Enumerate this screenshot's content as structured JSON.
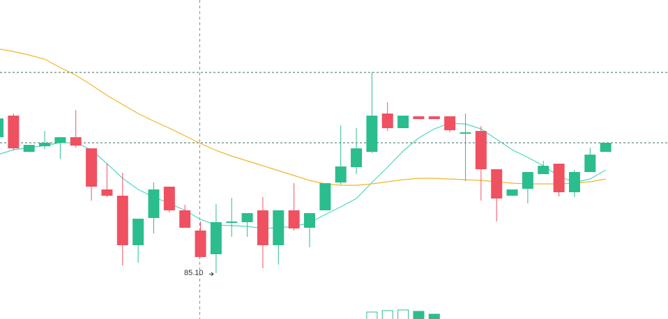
{
  "chart_data": {
    "type": "candlestick",
    "up_color": "#2bbd8e",
    "down_color": "#ef5161",
    "ylim": [
      84.44,
      89.02
    ],
    "open": [
      87.05,
      87.36,
      86.84,
      86.92,
      86.97,
      87.05,
      86.89,
      86.3,
      86.21,
      85.5,
      85.89,
      86.34,
      86.0,
      85.71,
      85.37,
      85.82,
      85.83,
      86.0,
      85.5,
      86.0,
      85.75,
      86.0,
      86.4,
      86.62,
      86.84,
      87.39,
      87.18,
      87.35,
      87.35,
      87.35,
      87.1,
      87.14,
      86.59,
      86.21,
      86.31,
      86.52,
      86.67,
      86.26,
      86.55,
      86.84
    ],
    "high": [
      87.32,
      87.39,
      86.94,
      87.14,
      87.05,
      87.44,
      86.89,
      86.67,
      86.54,
      85.88,
      86.4,
      86.34,
      86.08,
      85.84,
      86.09,
      86.18,
      85.96,
      86.19,
      86.0,
      86.39,
      85.96,
      86.39,
      87.22,
      87.18,
      87.98,
      87.55,
      87.36,
      87.35,
      87.35,
      87.35,
      87.39,
      87.21,
      86.59,
      86.3,
      86.55,
      86.71,
      86.67,
      86.58,
      86.9,
      86.97
    ],
    "low": [
      87.05,
      86.86,
      86.84,
      86.88,
      86.74,
      86.9,
      86.14,
      86.19,
      85.21,
      85.25,
      85.67,
      85.97,
      85.75,
      85.33,
      85.1,
      85.62,
      85.62,
      85.17,
      85.22,
      85.71,
      85.47,
      86.0,
      86.37,
      86.52,
      86.82,
      87.14,
      87.18,
      87.31,
      87.31,
      87.12,
      86.42,
      86.14,
      85.84,
      86.21,
      86.1,
      86.52,
      86.2,
      86.19,
      86.55,
      86.84
    ],
    "close": [
      87.32,
      86.89,
      86.94,
      86.97,
      87.05,
      86.93,
      86.34,
      86.21,
      85.5,
      85.88,
      86.3,
      86.0,
      85.75,
      85.33,
      85.83,
      85.84,
      85.96,
      85.5,
      86.0,
      85.74,
      85.96,
      86.39,
      86.63,
      86.89,
      87.36,
      87.18,
      87.36,
      87.31,
      87.31,
      87.15,
      87.12,
      86.59,
      86.17,
      86.3,
      86.55,
      86.64,
      86.26,
      86.55,
      86.8,
      86.97
    ],
    "moving_averages": [
      {
        "color": "#4fd6c4",
        "values": [
          86.8,
          86.87,
          86.9,
          86.93,
          86.97,
          86.97,
          86.87,
          86.67,
          86.46,
          86.3,
          86.19,
          86.1,
          86.0,
          85.87,
          85.79,
          85.78,
          85.77,
          85.74,
          85.75,
          85.77,
          85.82,
          85.94,
          86.05,
          86.17,
          86.4,
          86.62,
          86.85,
          87.04,
          87.17,
          87.25,
          87.24,
          87.17,
          87.02,
          86.87,
          86.76,
          86.64,
          86.49,
          86.4,
          86.45,
          86.58
        ]
      },
      {
        "color": "#f0b429",
        "values": [
          88.32,
          88.28,
          88.23,
          88.17,
          88.05,
          87.94,
          87.8,
          87.65,
          87.52,
          87.39,
          87.28,
          87.18,
          87.07,
          86.96,
          86.86,
          86.78,
          86.71,
          86.64,
          86.57,
          86.5,
          86.43,
          86.38,
          86.36,
          86.36,
          86.38,
          86.41,
          86.44,
          86.46,
          86.46,
          86.45,
          86.44,
          86.43,
          86.41,
          86.39,
          86.38,
          86.38,
          86.38,
          86.39,
          86.41,
          86.45
        ]
      }
    ],
    "volume": [
      null,
      null,
      null,
      null,
      null,
      null,
      null,
      null,
      null,
      null,
      null,
      null,
      null,
      null,
      null,
      null,
      null,
      null,
      null,
      null,
      null,
      null,
      null,
      null,
      10,
      12,
      13,
      11,
      7,
      null,
      null,
      null,
      null,
      null,
      null,
      null,
      null,
      null,
      null,
      null
    ],
    "annotation": "85.10"
  }
}
